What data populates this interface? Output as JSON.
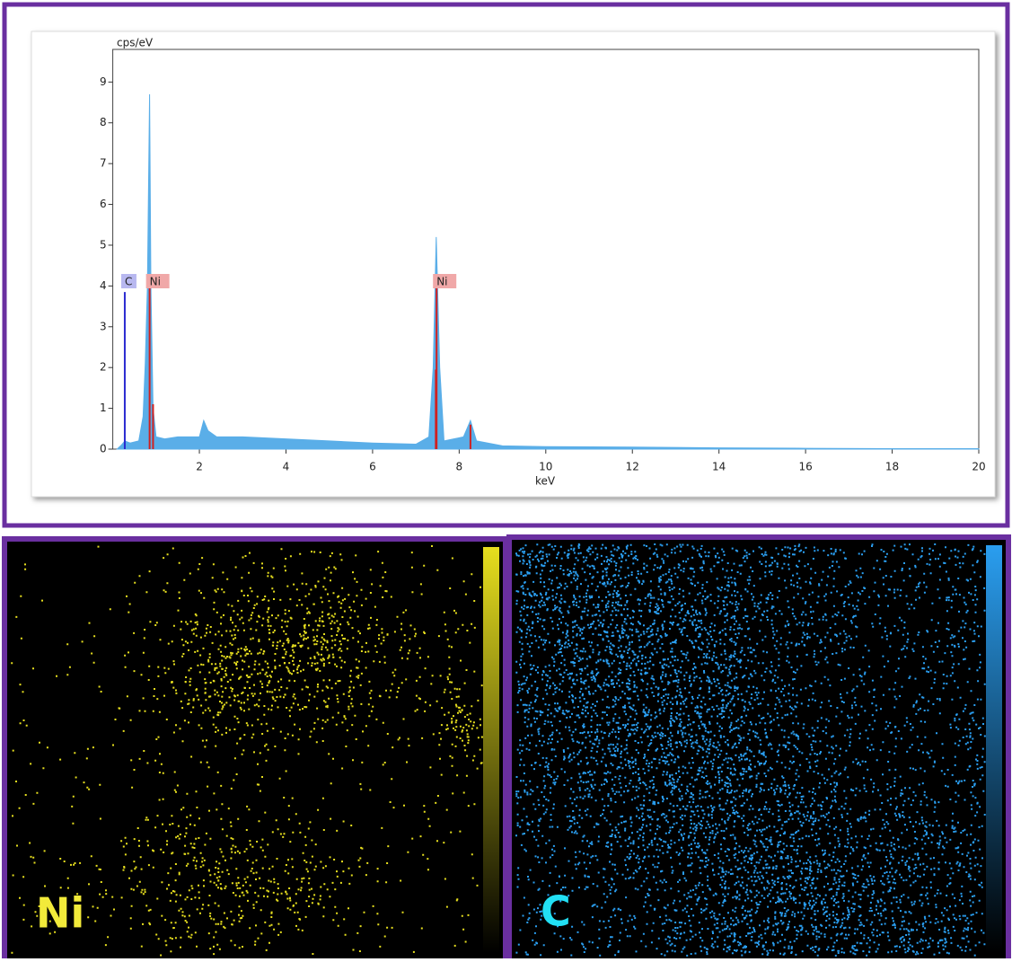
{
  "chart_data": {
    "type": "area",
    "y_label": "cps/eV",
    "x_label": "keV",
    "x": [
      0.1,
      0.2,
      0.28,
      0.4,
      0.6,
      0.7,
      0.75,
      0.8,
      0.85,
      0.88,
      0.93,
      1.0,
      1.2,
      1.5,
      2.0,
      2.1,
      2.2,
      2.4,
      3,
      4,
      5,
      6,
      7,
      7.3,
      7.4,
      7.47,
      7.55,
      7.65,
      8.1,
      8.26,
      8.4,
      9,
      10,
      12,
      14,
      16,
      18,
      20
    ],
    "values": [
      0,
      0.1,
      0.2,
      0.15,
      0.2,
      0.8,
      2.1,
      4,
      8.7,
      4,
      1,
      0.3,
      0.25,
      0.3,
      0.3,
      0.7,
      0.45,
      0.3,
      0.3,
      0.25,
      0.2,
      0.15,
      0.12,
      0.3,
      2,
      5.2,
      2,
      0.2,
      0.3,
      0.7,
      0.2,
      0.08,
      0.06,
      0.05,
      0.03,
      0.02,
      0.01,
      0.01
    ],
    "color": "#5aaee8",
    "element_lines": [
      {
        "element": "C",
        "energy": 0.277,
        "height": 3.85,
        "color": "#2a2ad0",
        "label_color": "#b8b8f0"
      },
      {
        "element": "Ni",
        "energy": 0.851,
        "height": 4.05,
        "color": "#d02020",
        "label_color": "#f0a8a8"
      },
      {
        "element": "Ni",
        "energy": 7.478,
        "height": 4.05,
        "color": "#d02020",
        "label_color": "#f0a8a8"
      }
    ],
    "minor_lines": [
      {
        "energy": 0.93,
        "height": 1.1
      },
      {
        "energy": 7.46,
        "height": 1.95
      },
      {
        "energy": 8.26,
        "height": 0.6
      }
    ],
    "xlim": [
      0,
      20
    ],
    "xticks": [
      2,
      4,
      6,
      8,
      10,
      12,
      14,
      16,
      18,
      20
    ],
    "ylim": [
      0,
      9.8
    ],
    "yticks": [
      0,
      1,
      2,
      3,
      4,
      5,
      6,
      7,
      8,
      9
    ]
  },
  "maps": [
    {
      "element": "Ni",
      "color": "#e6de1e",
      "label_color": "#f2ea3a"
    },
    {
      "element": "C",
      "color": "#2a9ef0",
      "label_color": "#22e0f4"
    }
  ]
}
